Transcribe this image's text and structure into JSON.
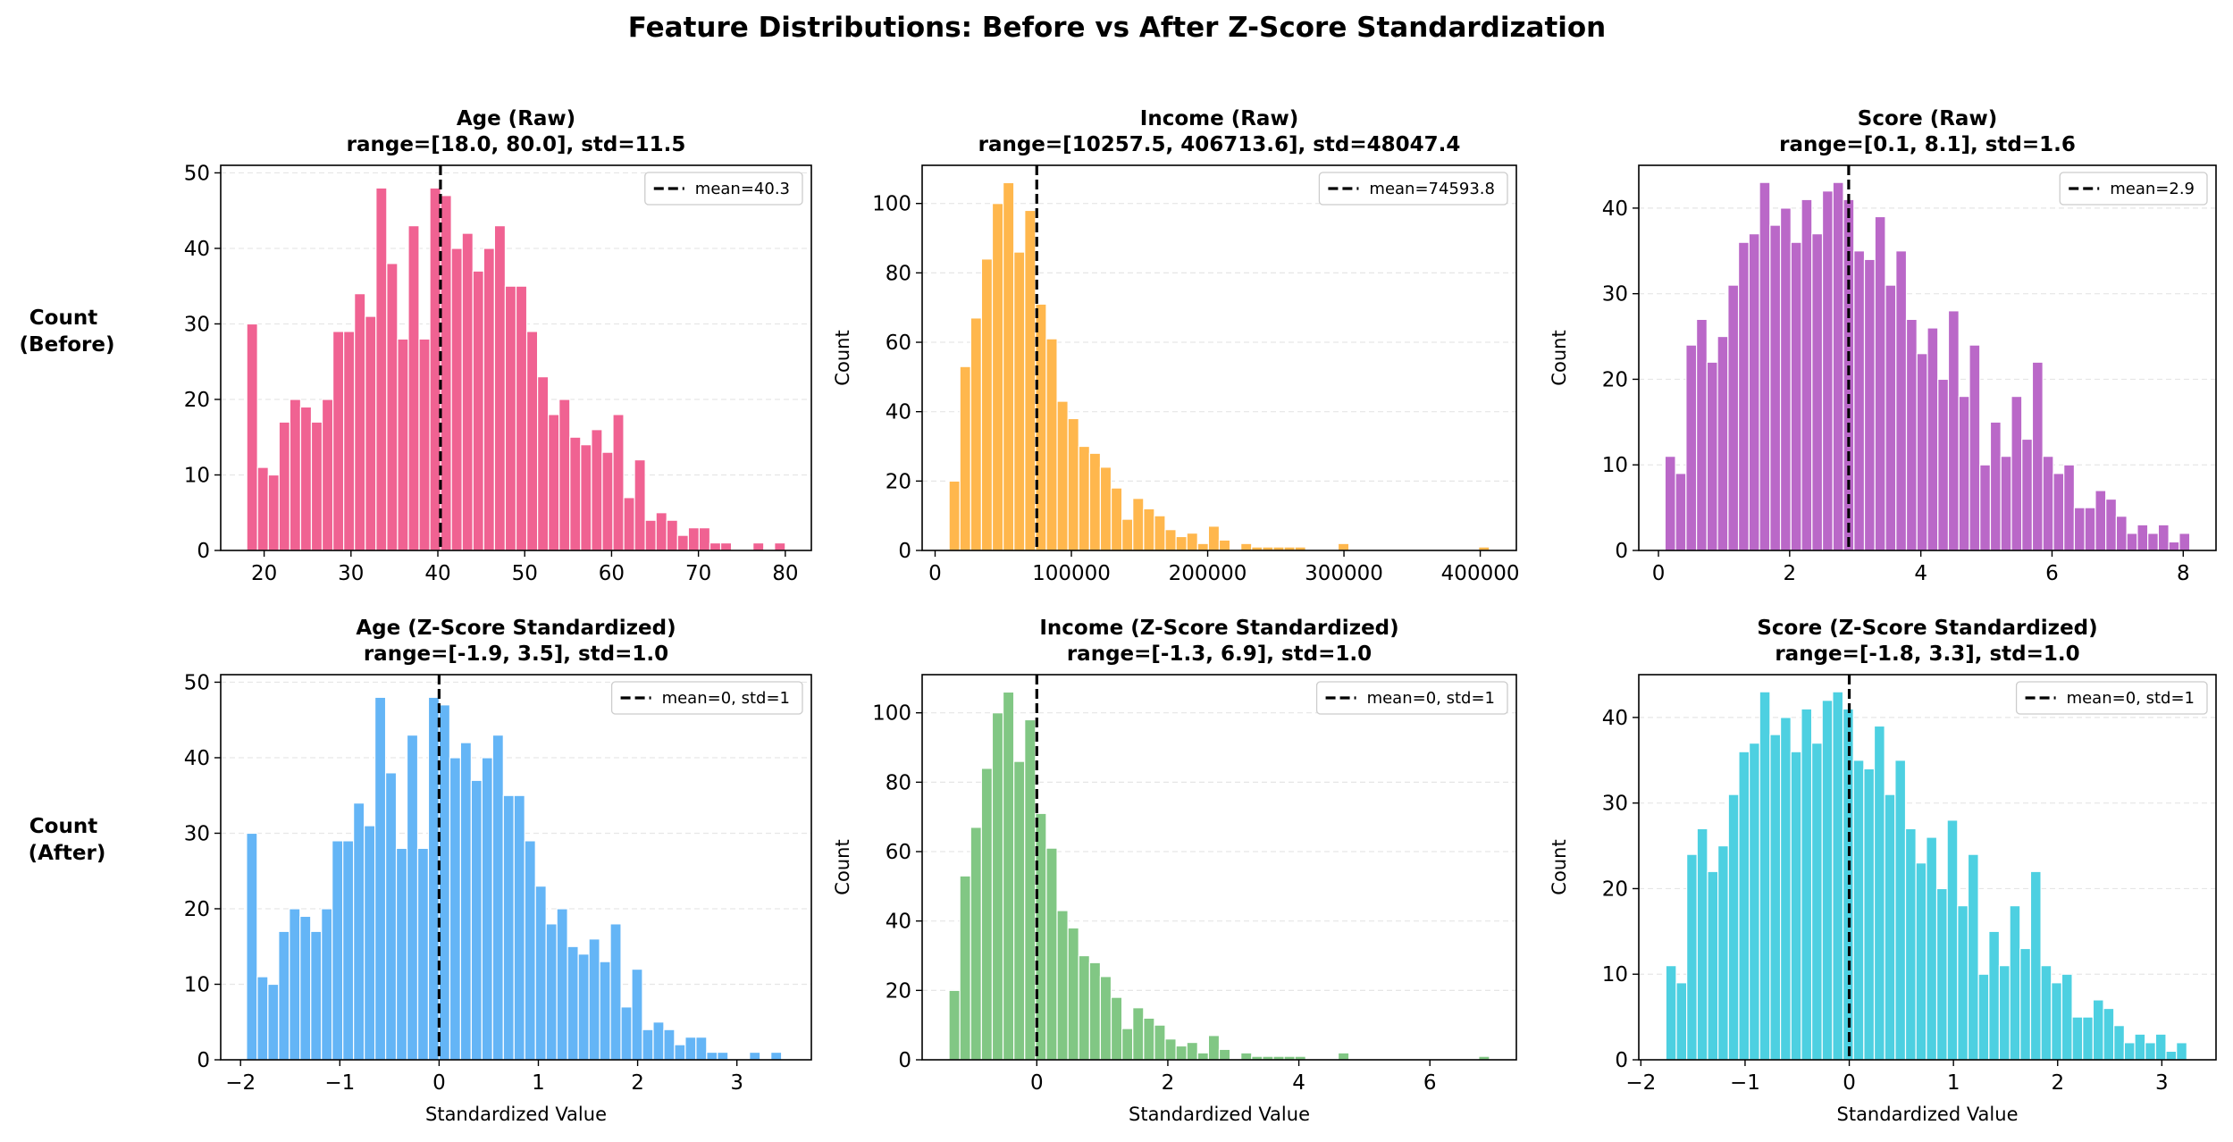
{
  "suptitle": "Feature Distributions: Before vs After Z-Score Standardization",
  "row_labels": [
    [
      "Count",
      "(Before)"
    ],
    [
      "Count",
      "(After)"
    ]
  ],
  "chart_data": [
    {
      "type": "bar",
      "title": "Age (Raw)",
      "subtitle": "range=[18.0, 80.0], std=11.5",
      "xlabel": "",
      "ylabel": "",
      "color": "#f06292",
      "bin_start": 18.0,
      "bin_width": 1.24,
      "values": [
        30,
        11,
        10,
        17,
        20,
        19,
        17,
        20,
        29,
        29,
        34,
        31,
        48,
        38,
        28,
        43,
        28,
        48,
        47,
        40,
        42,
        37,
        40,
        43,
        35,
        35,
        29,
        23,
        18,
        20,
        15,
        14,
        16,
        13,
        18,
        7,
        12,
        4,
        5,
        4,
        2,
        3,
        3,
        1,
        1,
        0,
        0,
        1,
        0,
        1
      ],
      "mean_line": 40.3,
      "legend": "mean=40.3",
      "xlim": [
        15.0,
        83.0
      ],
      "ylim": [
        0,
        51
      ],
      "xticks": [
        20,
        30,
        40,
        50,
        60,
        70,
        80
      ],
      "xticklabels": [
        "20",
        "30",
        "40",
        "50",
        "60",
        "70",
        "80"
      ],
      "yticks": [
        0,
        10,
        20,
        30,
        40,
        50
      ],
      "yticklabels": [
        "0",
        "10",
        "20",
        "30",
        "40",
        "50"
      ],
      "grid": "y-dashed",
      "legend_position": "top-right"
    },
    {
      "type": "bar",
      "title": "Income (Raw)",
      "subtitle": "range=[10257.5, 406713.6], std=48047.4",
      "xlabel": "",
      "ylabel": "Count",
      "color": "#ffb74d",
      "bin_start": 10257.5,
      "bin_width": 7929.1,
      "values": [
        20,
        53,
        67,
        84,
        100,
        106,
        86,
        98,
        71,
        61,
        43,
        38,
        30,
        28,
        24,
        18,
        9,
        15,
        12,
        10,
        6,
        4,
        5,
        2,
        7,
        3,
        0,
        2,
        1,
        1,
        1,
        1,
        1,
        0,
        0,
        0,
        2,
        0,
        0,
        0,
        0,
        0,
        0,
        0,
        0,
        0,
        0,
        0,
        0,
        1
      ],
      "mean_line": 74593.8,
      "legend": "mean=74593.8",
      "xlim": [
        -9500,
        426500
      ],
      "ylim": [
        0,
        111
      ],
      "xticks": [
        0,
        100000,
        200000,
        300000,
        400000
      ],
      "xticklabels": [
        "0",
        "100000",
        "200000",
        "300000",
        "400000"
      ],
      "yticks": [
        0,
        20,
        40,
        60,
        80,
        100
      ],
      "yticklabels": [
        "0",
        "20",
        "40",
        "60",
        "80",
        "100"
      ],
      "grid": "y-dashed",
      "legend_position": "top-right"
    },
    {
      "type": "bar",
      "title": "Score (Raw)",
      "subtitle": "range=[0.1, 8.1], std=1.6",
      "xlabel": "",
      "ylabel": "Count",
      "color": "#ba68c8",
      "bin_start": 0.1,
      "bin_width": 0.16,
      "values": [
        11,
        9,
        24,
        27,
        22,
        25,
        31,
        36,
        37,
        43,
        38,
        40,
        36,
        41,
        37,
        42,
        43,
        41,
        35,
        34,
        39,
        31,
        35,
        27,
        23,
        26,
        20,
        28,
        18,
        24,
        10,
        15,
        11,
        18,
        13,
        22,
        11,
        9,
        10,
        5,
        5,
        7,
        6,
        4,
        2,
        3,
        2,
        3,
        1,
        2
      ],
      "mean_line": 2.9,
      "legend": "mean=2.9",
      "xlim": [
        -0.3,
        8.5
      ],
      "ylim": [
        0,
        45
      ],
      "xticks": [
        0,
        2,
        4,
        6,
        8
      ],
      "xticklabels": [
        "0",
        "2",
        "4",
        "6",
        "8"
      ],
      "yticks": [
        0,
        10,
        20,
        30,
        40
      ],
      "yticklabels": [
        "0",
        "10",
        "20",
        "30",
        "40"
      ],
      "grid": "y-dashed",
      "legend_position": "top-right"
    },
    {
      "type": "bar",
      "title": "Age (Z-Score Standardized)",
      "subtitle": "range=[-1.9, 3.5], std=1.0",
      "xlabel": "Standardized Value",
      "ylabel": "",
      "color": "#64b5f6",
      "bin_start": -1.94,
      "bin_width": 0.1078,
      "values": [
        30,
        11,
        10,
        17,
        20,
        19,
        17,
        20,
        29,
        29,
        34,
        31,
        48,
        38,
        28,
        43,
        28,
        48,
        47,
        40,
        42,
        37,
        40,
        43,
        35,
        35,
        29,
        23,
        18,
        20,
        15,
        14,
        16,
        13,
        18,
        7,
        12,
        4,
        5,
        4,
        2,
        3,
        3,
        1,
        1,
        0,
        0,
        1,
        0,
        1
      ],
      "mean_line": 0,
      "legend": "mean=0, std=1",
      "xlim": [
        -2.2,
        3.75
      ],
      "ylim": [
        0,
        51
      ],
      "xticks": [
        -2,
        -1,
        0,
        1,
        2,
        3
      ],
      "xticklabels": [
        "−2",
        "−1",
        "0",
        "1",
        "2",
        "3"
      ],
      "yticks": [
        0,
        10,
        20,
        30,
        40,
        50
      ],
      "yticklabels": [
        "0",
        "10",
        "20",
        "30",
        "40",
        "50"
      ],
      "grid": "y-dashed",
      "legend_position": "top-right"
    },
    {
      "type": "bar",
      "title": "Income (Z-Score Standardized)",
      "subtitle": "range=[-1.3, 6.9], std=1.0",
      "xlabel": "Standardized Value",
      "ylabel": "Count",
      "color": "#81c784",
      "bin_start": -1.34,
      "bin_width": 0.165,
      "values": [
        20,
        53,
        67,
        84,
        100,
        106,
        86,
        98,
        71,
        61,
        43,
        38,
        30,
        28,
        24,
        18,
        9,
        15,
        12,
        10,
        6,
        4,
        5,
        2,
        7,
        3,
        0,
        2,
        1,
        1,
        1,
        1,
        1,
        0,
        0,
        0,
        2,
        0,
        0,
        0,
        0,
        0,
        0,
        0,
        0,
        0,
        0,
        0,
        0,
        1
      ],
      "mean_line": 0,
      "legend": "mean=0, std=1",
      "xlim": [
        -1.75,
        7.32
      ],
      "ylim": [
        0,
        111
      ],
      "xticks": [
        0,
        2,
        4,
        6
      ],
      "xticklabels": [
        "0",
        "2",
        "4",
        "6"
      ],
      "yticks": [
        0,
        20,
        40,
        60,
        80,
        100
      ],
      "yticklabels": [
        "0",
        "20",
        "40",
        "60",
        "80",
        "100"
      ],
      "grid": "y-dashed",
      "legend_position": "top-right"
    },
    {
      "type": "bar",
      "title": "Score (Z-Score Standardized)",
      "subtitle": "range=[-1.8, 3.3], std=1.0",
      "xlabel": "Standardized Value",
      "ylabel": "Count",
      "color": "#4dd0e1",
      "bin_start": -1.76,
      "bin_width": 0.1,
      "values": [
        11,
        9,
        24,
        27,
        22,
        25,
        31,
        36,
        37,
        43,
        38,
        40,
        36,
        41,
        37,
        42,
        43,
        41,
        35,
        34,
        39,
        31,
        35,
        27,
        23,
        26,
        20,
        28,
        18,
        24,
        10,
        15,
        11,
        18,
        13,
        22,
        11,
        9,
        10,
        5,
        5,
        7,
        6,
        4,
        2,
        3,
        2,
        3,
        1,
        2
      ],
      "mean_line": 0,
      "legend": "mean=0, std=1",
      "xlim": [
        -2.02,
        3.52
      ],
      "ylim": [
        0,
        45
      ],
      "xticks": [
        -2,
        -1,
        0,
        1,
        2,
        3
      ],
      "xticklabels": [
        "−2",
        "−1",
        "0",
        "1",
        "2",
        "3"
      ],
      "yticks": [
        0,
        10,
        20,
        30,
        40
      ],
      "yticklabels": [
        "0",
        "10",
        "20",
        "30",
        "40"
      ],
      "grid": "y-dashed",
      "legend_position": "top-right"
    }
  ]
}
